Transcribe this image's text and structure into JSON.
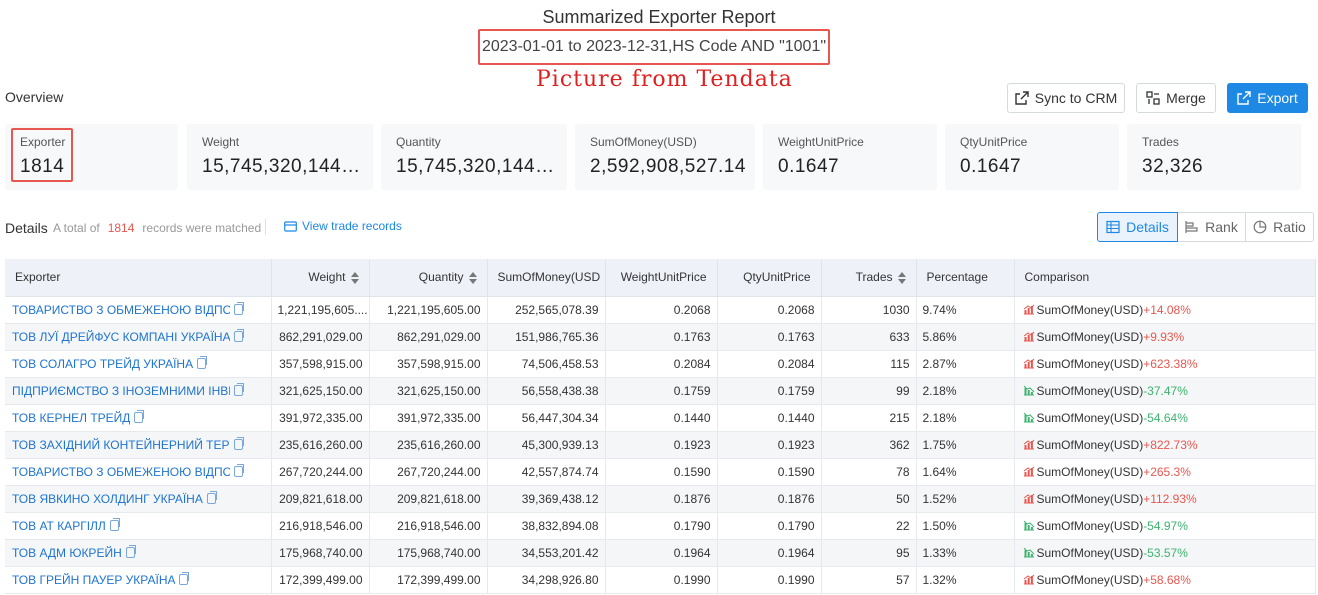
{
  "report": {
    "title": "Summarized Exporter Report",
    "query": "2023-01-01 to 2023-12-31,HS Code AND \"1001\"",
    "watermark": "Picture from Tendata"
  },
  "overview": {
    "label": "Overview",
    "buttons": {
      "sync": "Sync to CRM",
      "merge": "Merge",
      "export": "Export"
    },
    "cards": [
      {
        "label": "Exporter",
        "value": "1814"
      },
      {
        "label": "Weight",
        "value": "15,745,320,144...."
      },
      {
        "label": "Quantity",
        "value": "15,745,320,144...."
      },
      {
        "label": "SumOfMoney(USD)",
        "value": "2,592,908,527.14"
      },
      {
        "label": "WeightUnitPrice",
        "value": "0.1647"
      },
      {
        "label": "QtyUnitPrice",
        "value": "0.1647"
      },
      {
        "label": "Trades",
        "value": "32,326"
      }
    ]
  },
  "details": {
    "label": "Details",
    "total_prefix": "A total of",
    "total_count": "1814",
    "total_suffix": "records were matched",
    "view_trade": "View trade records",
    "tabs": {
      "details": "Details",
      "rank": "Rank",
      "ratio": "Ratio"
    }
  },
  "table": {
    "headers": [
      "Exporter",
      "Weight",
      "Quantity",
      "SumOfMoney(USD",
      "WeightUnitPrice",
      "QtyUnitPrice",
      "Trades",
      "Percentage",
      "Comparison"
    ],
    "rows": [
      {
        "exporter": "ТОВАРИСТВО З ОБМЕЖЕНОЮ ВІДПОВІДАЛЬНІСТЮ",
        "weight": "1,221,195,605....",
        "quantity": "1,221,195,605.00",
        "sum": "252,565,078.39",
        "wup": "0.2068",
        "qup": "0.2068",
        "trades": "1030",
        "pct": "9.74%",
        "cmp_label": "SumOfMoney(USD)",
        "cmp_value": "+14.08%",
        "trend": "up"
      },
      {
        "exporter": "ТОВ ЛУЇ ДРЕЙФУС КОМПАНІ УКРАЇНА",
        "weight": "862,291,029.00",
        "quantity": "862,291,029.00",
        "sum": "151,986,765.36",
        "wup": "0.1763",
        "qup": "0.1763",
        "trades": "633",
        "pct": "5.86%",
        "cmp_label": "SumOfMoney(USD)",
        "cmp_value": "+9.93%",
        "trend": "up"
      },
      {
        "exporter": "ТОВ СОЛАГРО ТРЕЙД УКРАЇНА",
        "weight": "357,598,915.00",
        "quantity": "357,598,915.00",
        "sum": "74,506,458.53",
        "wup": "0.2084",
        "qup": "0.2084",
        "trades": "115",
        "pct": "2.87%",
        "cmp_label": "SumOfMoney(USD)",
        "cmp_value": "+623.38%",
        "trend": "up"
      },
      {
        "exporter": "ПІДПРИЄМСТВО З ІНОЗЕМНИМИ ІНВЕСТИЦІЯМИ",
        "weight": "321,625,150.00",
        "quantity": "321,625,150.00",
        "sum": "56,558,438.38",
        "wup": "0.1759",
        "qup": "0.1759",
        "trades": "99",
        "pct": "2.18%",
        "cmp_label": "SumOfMoney(USD)",
        "cmp_value": "-37.47%",
        "trend": "down"
      },
      {
        "exporter": "ТОВ КЕРНЕЛ ТРЕЙД",
        "weight": "391,972,335.00",
        "quantity": "391,972,335.00",
        "sum": "56,447,304.34",
        "wup": "0.1440",
        "qup": "0.1440",
        "trades": "215",
        "pct": "2.18%",
        "cmp_label": "SumOfMoney(USD)",
        "cmp_value": "-54.64%",
        "trend": "down"
      },
      {
        "exporter": "ТОВ ЗАХІДНИЙ КОНТЕЙНЕРНИЙ ТЕРМІНАЛ",
        "weight": "235,616,260.00",
        "quantity": "235,616,260.00",
        "sum": "45,300,939.13",
        "wup": "0.1923",
        "qup": "0.1923",
        "trades": "362",
        "pct": "1.75%",
        "cmp_label": "SumOfMoney(USD)",
        "cmp_value": "+822.73%",
        "trend": "up"
      },
      {
        "exporter": "ТОВАРИСТВО З ОБМЕЖЕНОЮ ВІДПОВІДАЛЬНІСТЮ",
        "weight": "267,720,244.00",
        "quantity": "267,720,244.00",
        "sum": "42,557,874.74",
        "wup": "0.1590",
        "qup": "0.1590",
        "trades": "78",
        "pct": "1.64%",
        "cmp_label": "SumOfMoney(USD)",
        "cmp_value": "+265.3%",
        "trend": "up"
      },
      {
        "exporter": "ТОВ ЯВКИНО ХОЛДИНГ УКРАЇНА",
        "weight": "209,821,618.00",
        "quantity": "209,821,618.00",
        "sum": "39,369,438.12",
        "wup": "0.1876",
        "qup": "0.1876",
        "trades": "50",
        "pct": "1.52%",
        "cmp_label": "SumOfMoney(USD)",
        "cmp_value": "+112.93%",
        "trend": "up"
      },
      {
        "exporter": "ТОВ АТ КАРГІЛЛ",
        "weight": "216,918,546.00",
        "quantity": "216,918,546.00",
        "sum": "38,832,894.08",
        "wup": "0.1790",
        "qup": "0.1790",
        "trades": "22",
        "pct": "1.50%",
        "cmp_label": "SumOfMoney(USD)",
        "cmp_value": "-54.97%",
        "trend": "down"
      },
      {
        "exporter": "ТОВ АДМ ЮКРЕЙН",
        "weight": "175,968,740.00",
        "quantity": "175,968,740.00",
        "sum": "34,553,201.42",
        "wup": "0.1964",
        "qup": "0.1964",
        "trades": "95",
        "pct": "1.33%",
        "cmp_label": "SumOfMoney(USD)",
        "cmp_value": "-53.57%",
        "trend": "down"
      },
      {
        "exporter": "ТОВ ГРЕЙН ПАУЕР УКРАЇНА",
        "weight": "172,399,499.00",
        "quantity": "172,399,499.00",
        "sum": "34,298,926.80",
        "wup": "0.1990",
        "qup": "0.1990",
        "trades": "57",
        "pct": "1.32%",
        "cmp_label": "SumOfMoney(USD)",
        "cmp_value": "+58.68%",
        "trend": "up"
      }
    ]
  },
  "colors": {
    "accent": "#1e88e5",
    "highlight": "#e8574f",
    "up": "#e8574f",
    "down": "#3eb36f"
  }
}
